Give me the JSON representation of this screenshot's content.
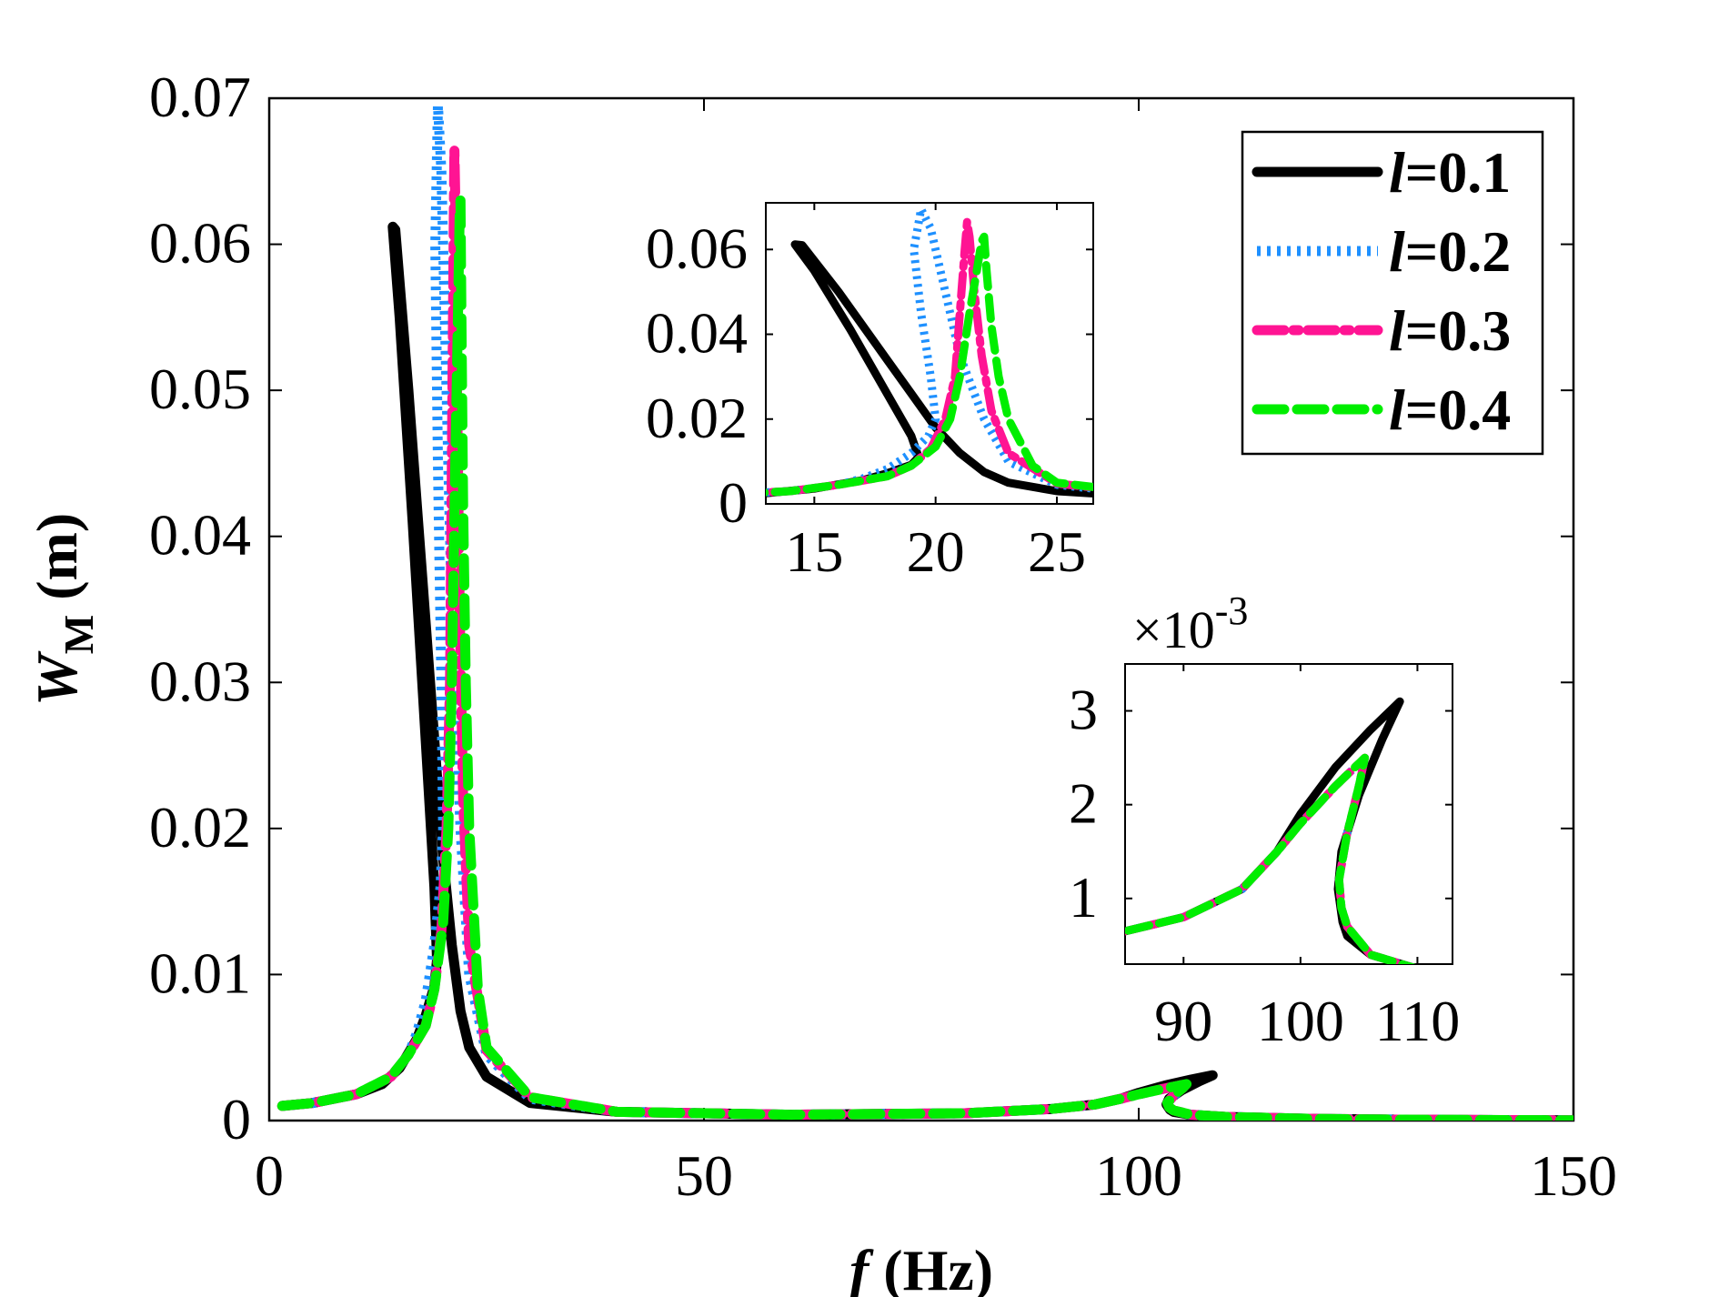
{
  "chart_data": [
    {
      "id": "main",
      "type": "line",
      "title": "",
      "xlabel_italic": "f",
      "xlabel_rest": " (Hz)",
      "ylabel_italic": "W",
      "ylabel_sub": "M",
      "ylabel_rest": " (m)",
      "xlim": [
        0,
        150
      ],
      "ylim": [
        0,
        0.07
      ],
      "xticks": [
        0,
        50,
        100,
        150
      ],
      "xtick_labels": [
        "0",
        "50",
        "100",
        "150"
      ],
      "yticks": [
        0,
        0.01,
        0.02,
        0.03,
        0.04,
        0.05,
        0.06,
        0.07
      ],
      "ytick_labels": [
        "0",
        "0.01",
        "0.02",
        "0.03",
        "0.04",
        "0.05",
        "0.06",
        "0.07"
      ],
      "legend_position": "top-right",
      "series": [
        {
          "name": "l=0.1",
          "legend_italic": "l",
          "legend_rest": "=0.1",
          "color": "#000000",
          "style": "solid",
          "x": [
            1.5,
            5,
            10,
            13,
            15,
            17,
            18,
            19,
            19.3,
            19.0,
            18.0,
            16.5,
            15.0,
            14.2,
            14.5,
            16,
            17,
            18,
            19,
            20,
            21,
            22,
            23,
            25,
            30,
            40,
            60,
            80,
            90,
            95,
            98,
            100,
            103,
            106,
            108.5,
            107,
            105,
            103.5,
            103.2,
            103.6,
            104,
            106,
            110,
            120,
            130,
            150
          ],
          "y": [
            0.001,
            0.0012,
            0.0018,
            0.0025,
            0.0036,
            0.0056,
            0.0072,
            0.0092,
            0.011,
            0.016,
            0.026,
            0.041,
            0.055,
            0.0612,
            0.061,
            0.05,
            0.042,
            0.034,
            0.026,
            0.018,
            0.012,
            0.0075,
            0.005,
            0.003,
            0.0012,
            0.0006,
            0.0004,
            0.0005,
            0.0008,
            0.0011,
            0.0015,
            0.0019,
            0.0024,
            0.0028,
            0.0031,
            0.0027,
            0.0021,
            0.0015,
            0.0011,
            0.00075,
            0.0006,
            0.0004,
            0.00025,
            0.00012,
            6e-05,
            1e-05
          ]
        },
        {
          "name": "l=0.2",
          "legend_italic": "l",
          "legend_rest": "=0.2",
          "color": "#1e90ff",
          "style": "dotted",
          "x": [
            1.5,
            5,
            10,
            14,
            16,
            17,
            18,
            19,
            19.7,
            20.0,
            19.8,
            19.4,
            19.1,
            19.4,
            19.8,
            20.2,
            20.6,
            21,
            22,
            23,
            25,
            30,
            40,
            60,
            80,
            90,
            95,
            98,
            100,
            103,
            105.5,
            105,
            104,
            103.3,
            103.5,
            104,
            106,
            110,
            120,
            130,
            150
          ],
          "y": [
            0.001,
            0.0012,
            0.0018,
            0.003,
            0.0045,
            0.006,
            0.0082,
            0.012,
            0.016,
            0.02,
            0.03,
            0.045,
            0.06,
            0.0695,
            0.065,
            0.055,
            0.045,
            0.035,
            0.02,
            0.01,
            0.0045,
            0.0015,
            0.0006,
            0.0004,
            0.0005,
            0.0008,
            0.0011,
            0.0015,
            0.0018,
            0.0022,
            0.0025,
            0.0022,
            0.0017,
            0.0012,
            0.0009,
            0.0007,
            0.0004,
            0.00025,
            0.00012,
            6e-05,
            1e-05
          ]
        },
        {
          "name": "l=0.3",
          "legend_italic": "l",
          "legend_rest": "=0.3",
          "color": "#ff1493",
          "style": "dashdot",
          "x": [
            1.5,
            5,
            10,
            14,
            16,
            18,
            19,
            19.8,
            20.4,
            20.8,
            21.0,
            21.2,
            21.3,
            21.4,
            21.6,
            21.9,
            22.3,
            23,
            25,
            30,
            40,
            60,
            80,
            90,
            95,
            98,
            100,
            103,
            105.5,
            105,
            104,
            103.3,
            103.5,
            104,
            106,
            110,
            120,
            130,
            150
          ],
          "y": [
            0.001,
            0.0012,
            0.0018,
            0.003,
            0.0045,
            0.0065,
            0.009,
            0.013,
            0.02,
            0.03,
            0.045,
            0.06,
            0.0665,
            0.063,
            0.05,
            0.035,
            0.022,
            0.012,
            0.0048,
            0.0016,
            0.0006,
            0.0004,
            0.0005,
            0.0008,
            0.0011,
            0.0015,
            0.0018,
            0.0022,
            0.0025,
            0.0022,
            0.0017,
            0.0012,
            0.0009,
            0.0007,
            0.0004,
            0.00025,
            0.00012,
            6e-05,
            1e-05
          ]
        },
        {
          "name": "l=0.4",
          "legend_italic": "l",
          "legend_rest": "=0.4",
          "color": "#00ee00",
          "style": "dashed",
          "x": [
            1.5,
            5,
            10,
            14,
            16,
            18,
            19,
            20,
            20.6,
            21,
            21.4,
            21.7,
            21.9,
            22.0,
            22.1,
            22.3,
            22.6,
            23,
            24,
            25,
            30,
            40,
            60,
            80,
            90,
            95,
            98,
            100,
            103,
            105.5,
            105,
            104,
            103.3,
            103.5,
            104,
            106,
            110,
            120,
            130,
            150
          ],
          "y": [
            0.001,
            0.0012,
            0.0018,
            0.003,
            0.0045,
            0.0065,
            0.009,
            0.0135,
            0.02,
            0.03,
            0.045,
            0.055,
            0.062,
            0.063,
            0.055,
            0.042,
            0.03,
            0.02,
            0.009,
            0.005,
            0.0016,
            0.0006,
            0.0004,
            0.0005,
            0.0008,
            0.0011,
            0.0015,
            0.0018,
            0.0022,
            0.0025,
            0.0022,
            0.0017,
            0.0012,
            0.0009,
            0.0007,
            0.0004,
            0.00025,
            0.00012,
            6e-05,
            1e-05
          ]
        }
      ]
    },
    {
      "id": "inset-low",
      "type": "line",
      "title": "",
      "xlim": [
        13,
        26.5
      ],
      "ylim": [
        0,
        0.071
      ],
      "xticks": [
        15,
        20,
        25
      ],
      "xtick_labels": [
        "15",
        "20",
        "25"
      ],
      "yticks": [
        0,
        0.02,
        0.04,
        0.06
      ],
      "ytick_labels": [
        "0",
        "0.02",
        "0.04",
        "0.06"
      ],
      "series_ref": "main"
    },
    {
      "id": "inset-high",
      "type": "line",
      "title": "",
      "xlim": [
        85,
        113
      ],
      "ylim": [
        0.0003,
        0.0035
      ],
      "xticks": [
        90,
        100,
        110
      ],
      "xtick_labels": [
        "90",
        "100",
        "110"
      ],
      "yticks": [
        0.001,
        0.002,
        0.003
      ],
      "ytick_labels": [
        "1",
        "2",
        "3"
      ],
      "scale_label_times": "×10",
      "scale_label_exp": "-3",
      "series_ref": "main"
    }
  ]
}
